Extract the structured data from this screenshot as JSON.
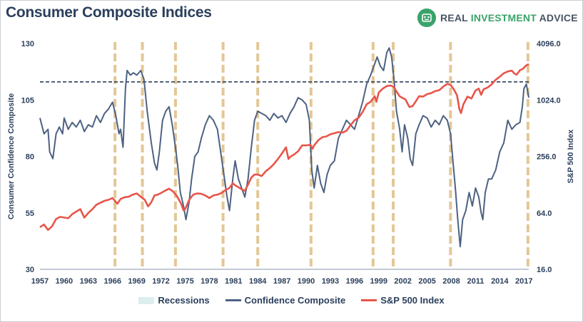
{
  "header": {
    "title": "Consumer Composite Indices",
    "brand_word1": "REAL",
    "brand_word2": "INVESTMENT",
    "brand_word3": "ADVICE"
  },
  "legend": {
    "recessions": "Recessions",
    "confidence": "Confidence Composite",
    "sp500": "S&P 500 Index"
  },
  "colors": {
    "confidence": "#4d6282",
    "sp500": "#e8554a",
    "recession": "#e3c796",
    "legend_recession": "#dceeee",
    "dashed": "#2b3f5c",
    "brand": "#3aa36b"
  },
  "chart_data": {
    "type": "line",
    "title": "Consumer Composite Indices",
    "xlabel": "",
    "ylabel_left": "Consumer Confidence Composite",
    "ylabel_right": "S&P 500 Index",
    "xlim": [
      1957,
      2017.6
    ],
    "ylim_left": [
      30,
      130
    ],
    "left_ticks": [
      30,
      55,
      80,
      105,
      130
    ],
    "right_ticks": [
      "16.0",
      "64.0",
      "256.0",
      "1024.0",
      "4096.0"
    ],
    "right_scale": "log2",
    "ylim_right": [
      16,
      4096
    ],
    "x_ticks": [
      1957,
      1960,
      1963,
      1966,
      1969,
      1972,
      1975,
      1978,
      1981,
      1984,
      1987,
      1990,
      1993,
      1996,
      1999,
      2002,
      2005,
      2008,
      2011,
      2014,
      2017
    ],
    "reference_line_left": 113,
    "recessions": [
      1966.3,
      1969.7,
      1973.8,
      1979.7,
      1984.0,
      1990.6,
      1998.3,
      2000.8,
      2007.9,
      2017.5
    ],
    "series": [
      {
        "name": "Confidence Composite",
        "axis": "left",
        "points": [
          [
            1957.0,
            97
          ],
          [
            1957.5,
            90
          ],
          [
            1958.0,
            92
          ],
          [
            1958.2,
            82
          ],
          [
            1958.6,
            79
          ],
          [
            1959.0,
            90
          ],
          [
            1959.4,
            93
          ],
          [
            1959.8,
            90
          ],
          [
            1960.0,
            97
          ],
          [
            1960.5,
            92
          ],
          [
            1961.0,
            95
          ],
          [
            1961.5,
            93
          ],
          [
            1962.0,
            96
          ],
          [
            1962.5,
            91
          ],
          [
            1963.0,
            94
          ],
          [
            1963.5,
            93
          ],
          [
            1964.0,
            98
          ],
          [
            1964.5,
            95
          ],
          [
            1965.0,
            99
          ],
          [
            1965.5,
            101
          ],
          [
            1966.0,
            104
          ],
          [
            1966.4,
            98
          ],
          [
            1966.8,
            90
          ],
          [
            1967.0,
            92
          ],
          [
            1967.3,
            84
          ],
          [
            1967.6,
            110
          ],
          [
            1967.8,
            118
          ],
          [
            1968.2,
            116
          ],
          [
            1968.6,
            117
          ],
          [
            1969.0,
            116
          ],
          [
            1969.5,
            118
          ],
          [
            1969.9,
            114
          ],
          [
            1970.3,
            100
          ],
          [
            1970.8,
            86
          ],
          [
            1971.2,
            77
          ],
          [
            1971.5,
            74
          ],
          [
            1971.8,
            82
          ],
          [
            1972.2,
            96
          ],
          [
            1972.6,
            100
          ],
          [
            1973.0,
            102
          ],
          [
            1973.4,
            94
          ],
          [
            1973.8,
            84
          ],
          [
            1974.1,
            75
          ],
          [
            1974.4,
            64
          ],
          [
            1974.8,
            58
          ],
          [
            1975.1,
            52
          ],
          [
            1975.5,
            60
          ],
          [
            1975.8,
            70
          ],
          [
            1976.2,
            80
          ],
          [
            1976.6,
            82
          ],
          [
            1977.0,
            88
          ],
          [
            1977.5,
            94
          ],
          [
            1978.0,
            98
          ],
          [
            1978.5,
            96
          ],
          [
            1979.0,
            92
          ],
          [
            1979.4,
            82
          ],
          [
            1979.8,
            72
          ],
          [
            1980.2,
            62
          ],
          [
            1980.5,
            56
          ],
          [
            1980.9,
            70
          ],
          [
            1981.2,
            78
          ],
          [
            1981.6,
            70
          ],
          [
            1982.0,
            66
          ],
          [
            1982.4,
            62
          ],
          [
            1982.8,
            70
          ],
          [
            1983.2,
            84
          ],
          [
            1983.6,
            96
          ],
          [
            1984.0,
            100
          ],
          [
            1984.5,
            99
          ],
          [
            1985.0,
            98
          ],
          [
            1985.5,
            96
          ],
          [
            1986.0,
            99
          ],
          [
            1986.5,
            97
          ],
          [
            1987.0,
            98
          ],
          [
            1987.5,
            95
          ],
          [
            1988.0,
            99
          ],
          [
            1988.5,
            102
          ],
          [
            1989.0,
            106
          ],
          [
            1989.5,
            105
          ],
          [
            1990.0,
            103
          ],
          [
            1990.4,
            96
          ],
          [
            1990.7,
            74
          ],
          [
            1991.0,
            66
          ],
          [
            1991.4,
            76
          ],
          [
            1991.8,
            68
          ],
          [
            1992.2,
            64
          ],
          [
            1992.6,
            72
          ],
          [
            1993.0,
            76
          ],
          [
            1993.5,
            78
          ],
          [
            1994.0,
            88
          ],
          [
            1994.5,
            92
          ],
          [
            1995.0,
            96
          ],
          [
            1995.5,
            94
          ],
          [
            1996.0,
            92
          ],
          [
            1996.5,
            98
          ],
          [
            1997.0,
            104
          ],
          [
            1997.5,
            112
          ],
          [
            1998.0,
            116
          ],
          [
            1998.4,
            120
          ],
          [
            1998.8,
            124
          ],
          [
            1999.2,
            120
          ],
          [
            1999.6,
            118
          ],
          [
            2000.0,
            126
          ],
          [
            2000.3,
            128
          ],
          [
            2000.6,
            124
          ],
          [
            2000.9,
            114
          ],
          [
            2001.2,
            100
          ],
          [
            2001.6,
            92
          ],
          [
            2001.9,
            82
          ],
          [
            2002.2,
            94
          ],
          [
            2002.6,
            88
          ],
          [
            2002.9,
            79
          ],
          [
            2003.2,
            76
          ],
          [
            2003.6,
            90
          ],
          [
            2004.0,
            94
          ],
          [
            2004.5,
            98
          ],
          [
            2005.0,
            97
          ],
          [
            2005.5,
            93
          ],
          [
            2006.0,
            96
          ],
          [
            2006.5,
            94
          ],
          [
            2007.0,
            98
          ],
          [
            2007.5,
            96
          ],
          [
            2007.9,
            90
          ],
          [
            2008.2,
            78
          ],
          [
            2008.5,
            66
          ],
          [
            2008.8,
            52
          ],
          [
            2009.1,
            40
          ],
          [
            2009.4,
            52
          ],
          [
            2009.8,
            56
          ],
          [
            2010.2,
            64
          ],
          [
            2010.6,
            58
          ],
          [
            2011.0,
            66
          ],
          [
            2011.4,
            62
          ],
          [
            2011.7,
            55
          ],
          [
            2011.9,
            52
          ],
          [
            2012.2,
            64
          ],
          [
            2012.6,
            70
          ],
          [
            2013.0,
            70
          ],
          [
            2013.5,
            74
          ],
          [
            2014.0,
            82
          ],
          [
            2014.5,
            86
          ],
          [
            2015.0,
            96
          ],
          [
            2015.5,
            92
          ],
          [
            2016.0,
            94
          ],
          [
            2016.5,
            95
          ],
          [
            2016.8,
            102
          ],
          [
            2017.0,
            110
          ],
          [
            2017.3,
            112
          ],
          [
            2017.6,
            106
          ]
        ]
      },
      {
        "name": "S&P 500 Index",
        "axis": "right",
        "points": [
          [
            1957.0,
            45
          ],
          [
            1957.5,
            48
          ],
          [
            1958.0,
            42
          ],
          [
            1958.5,
            46
          ],
          [
            1959.0,
            55
          ],
          [
            1959.5,
            58
          ],
          [
            1960.0,
            57
          ],
          [
            1960.5,
            56
          ],
          [
            1961.0,
            62
          ],
          [
            1961.5,
            66
          ],
          [
            1962.0,
            70
          ],
          [
            1962.5,
            57
          ],
          [
            1963.0,
            64
          ],
          [
            1963.5,
            70
          ],
          [
            1964.0,
            78
          ],
          [
            1964.5,
            82
          ],
          [
            1965.0,
            86
          ],
          [
            1965.5,
            88
          ],
          [
            1966.0,
            92
          ],
          [
            1966.6,
            80
          ],
          [
            1967.0,
            90
          ],
          [
            1967.5,
            94
          ],
          [
            1968.0,
            95
          ],
          [
            1968.5,
            100
          ],
          [
            1969.0,
            103
          ],
          [
            1969.5,
            95
          ],
          [
            1970.0,
            88
          ],
          [
            1970.4,
            75
          ],
          [
            1970.8,
            83
          ],
          [
            1971.2,
            98
          ],
          [
            1971.6,
            100
          ],
          [
            1972.0,
            104
          ],
          [
            1972.5,
            110
          ],
          [
            1973.0,
            116
          ],
          [
            1973.5,
            108
          ],
          [
            1974.0,
            96
          ],
          [
            1974.5,
            80
          ],
          [
            1974.8,
            68
          ],
          [
            1975.0,
            70
          ],
          [
            1975.5,
            88
          ],
          [
            1976.0,
            100
          ],
          [
            1976.5,
            103
          ],
          [
            1977.0,
            102
          ],
          [
            1977.5,
            98
          ],
          [
            1978.0,
            92
          ],
          [
            1978.5,
            98
          ],
          [
            1979.0,
            100
          ],
          [
            1979.5,
            104
          ],
          [
            1980.0,
            112
          ],
          [
            1980.5,
            118
          ],
          [
            1980.9,
            132
          ],
          [
            1981.2,
            126
          ],
          [
            1981.6,
            120
          ],
          [
            1982.0,
            114
          ],
          [
            1982.4,
            110
          ],
          [
            1982.8,
            128
          ],
          [
            1983.2,
            152
          ],
          [
            1983.6,
            164
          ],
          [
            1984.0,
            164
          ],
          [
            1984.5,
            158
          ],
          [
            1985.0,
            178
          ],
          [
            1985.5,
            192
          ],
          [
            1986.0,
            212
          ],
          [
            1986.5,
            240
          ],
          [
            1987.0,
            275
          ],
          [
            1987.5,
            320
          ],
          [
            1987.8,
            240
          ],
          [
            1988.0,
            252
          ],
          [
            1988.5,
            268
          ],
          [
            1989.0,
            290
          ],
          [
            1989.5,
            335
          ],
          [
            1990.0,
            335
          ],
          [
            1990.5,
            340
          ],
          [
            1990.8,
            310
          ],
          [
            1991.0,
            335
          ],
          [
            1991.5,
            380
          ],
          [
            1992.0,
            410
          ],
          [
            1992.5,
            418
          ],
          [
            1993.0,
            440
          ],
          [
            1993.5,
            452
          ],
          [
            1994.0,
            465
          ],
          [
            1994.5,
            458
          ],
          [
            1995.0,
            480
          ],
          [
            1995.5,
            550
          ],
          [
            1996.0,
            620
          ],
          [
            1996.5,
            660
          ],
          [
            1997.0,
            760
          ],
          [
            1997.5,
            920
          ],
          [
            1998.0,
            980
          ],
          [
            1998.5,
            1120
          ],
          [
            1998.7,
            980
          ],
          [
            1999.0,
            1230
          ],
          [
            1999.5,
            1350
          ],
          [
            2000.0,
            1440
          ],
          [
            2000.5,
            1460
          ],
          [
            2000.9,
            1400
          ],
          [
            2001.2,
            1260
          ],
          [
            2001.6,
            1120
          ],
          [
            2001.9,
            1080
          ],
          [
            2002.3,
            1040
          ],
          [
            2002.8,
            860
          ],
          [
            2003.2,
            880
          ],
          [
            2003.6,
            990
          ],
          [
            2004.0,
            1120
          ],
          [
            2004.5,
            1110
          ],
          [
            2005.0,
            1180
          ],
          [
            2005.5,
            1210
          ],
          [
            2006.0,
            1270
          ],
          [
            2006.5,
            1300
          ],
          [
            2007.0,
            1420
          ],
          [
            2007.5,
            1520
          ],
          [
            2007.9,
            1480
          ],
          [
            2008.3,
            1330
          ],
          [
            2008.7,
            1150
          ],
          [
            2009.0,
            820
          ],
          [
            2009.2,
            740
          ],
          [
            2009.5,
            920
          ],
          [
            2010.0,
            1110
          ],
          [
            2010.5,
            1060
          ],
          [
            2011.0,
            1290
          ],
          [
            2011.4,
            1350
          ],
          [
            2011.7,
            1160
          ],
          [
            2012.0,
            1330
          ],
          [
            2012.5,
            1390
          ],
          [
            2013.0,
            1500
          ],
          [
            2013.5,
            1680
          ],
          [
            2014.0,
            1810
          ],
          [
            2014.5,
            1970
          ],
          [
            2015.0,
            2060
          ],
          [
            2015.5,
            2100
          ],
          [
            2015.8,
            1960
          ],
          [
            2016.1,
            1900
          ],
          [
            2016.5,
            2120
          ],
          [
            2016.9,
            2200
          ],
          [
            2017.2,
            2360
          ],
          [
            2017.6,
            2470
          ]
        ]
      }
    ]
  }
}
